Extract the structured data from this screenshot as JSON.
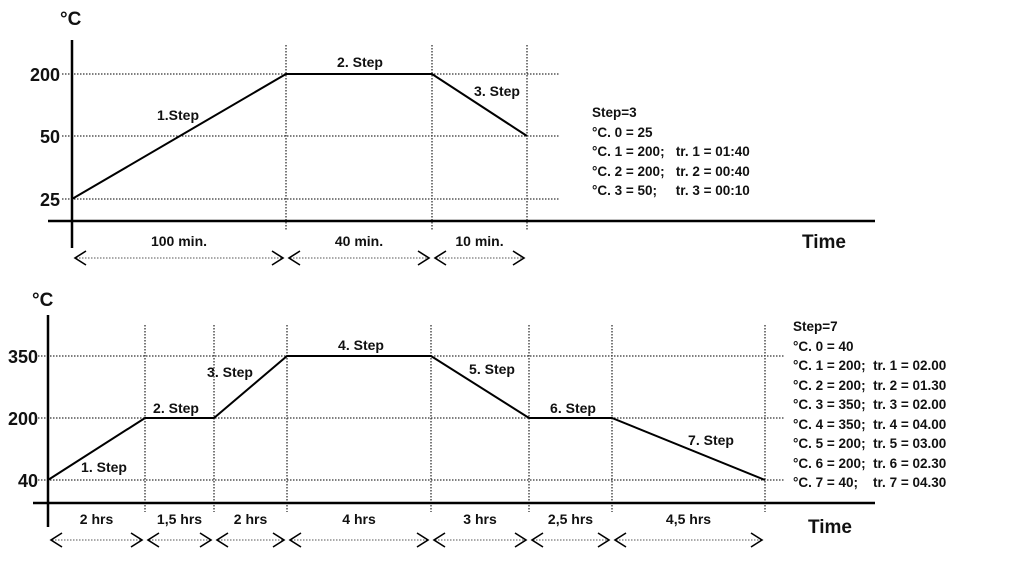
{
  "diagrams": [
    {
      "y_unit": "°C",
      "x_label": "Time",
      "y_ticks": [
        "200",
        "50",
        "25"
      ],
      "levels": [
        25,
        200,
        200,
        50
      ],
      "durations": [
        "100 min.",
        "40 min.",
        "10 min."
      ],
      "step_labels": [
        "1.Step",
        "2. Step",
        "3. Step"
      ],
      "info": [
        "Step=3",
        "°C. 0 = 25",
        "°C. 1 = 200;   tr. 1 = 01:40",
        "°C. 2 = 200;   tr. 2 = 00:40",
        "°C. 3 = 50;     tr. 3 = 00:10"
      ]
    },
    {
      "y_unit": "°C",
      "x_label": "Time",
      "y_ticks": [
        "350",
        "200",
        "40"
      ],
      "levels": [
        40,
        200,
        200,
        350,
        350,
        200,
        200,
        40
      ],
      "durations": [
        "2 hrs",
        "1,5 hrs",
        "2 hrs",
        "4 hrs",
        "3 hrs",
        "2,5 hrs",
        "4,5 hrs"
      ],
      "step_labels": [
        "1. Step",
        "2. Step",
        "3. Step",
        "4. Step",
        "5. Step",
        "6. Step",
        "7. Step"
      ],
      "info": [
        "Step=7",
        "°C. 0 = 40",
        "°C. 1 = 200;  tr. 1 = 02.00",
        "°C. 2 = 200;  tr. 2 = 01.30",
        "°C. 3 = 350;  tr. 3 = 02.00",
        "°C. 4 = 350;  tr. 4 = 04.00",
        "°C. 5 = 200;  tr. 5 = 03.00",
        "°C. 6 = 200;  tr. 6 = 02.30",
        "°C. 7 = 40;    tr. 7 = 04.30"
      ]
    }
  ]
}
